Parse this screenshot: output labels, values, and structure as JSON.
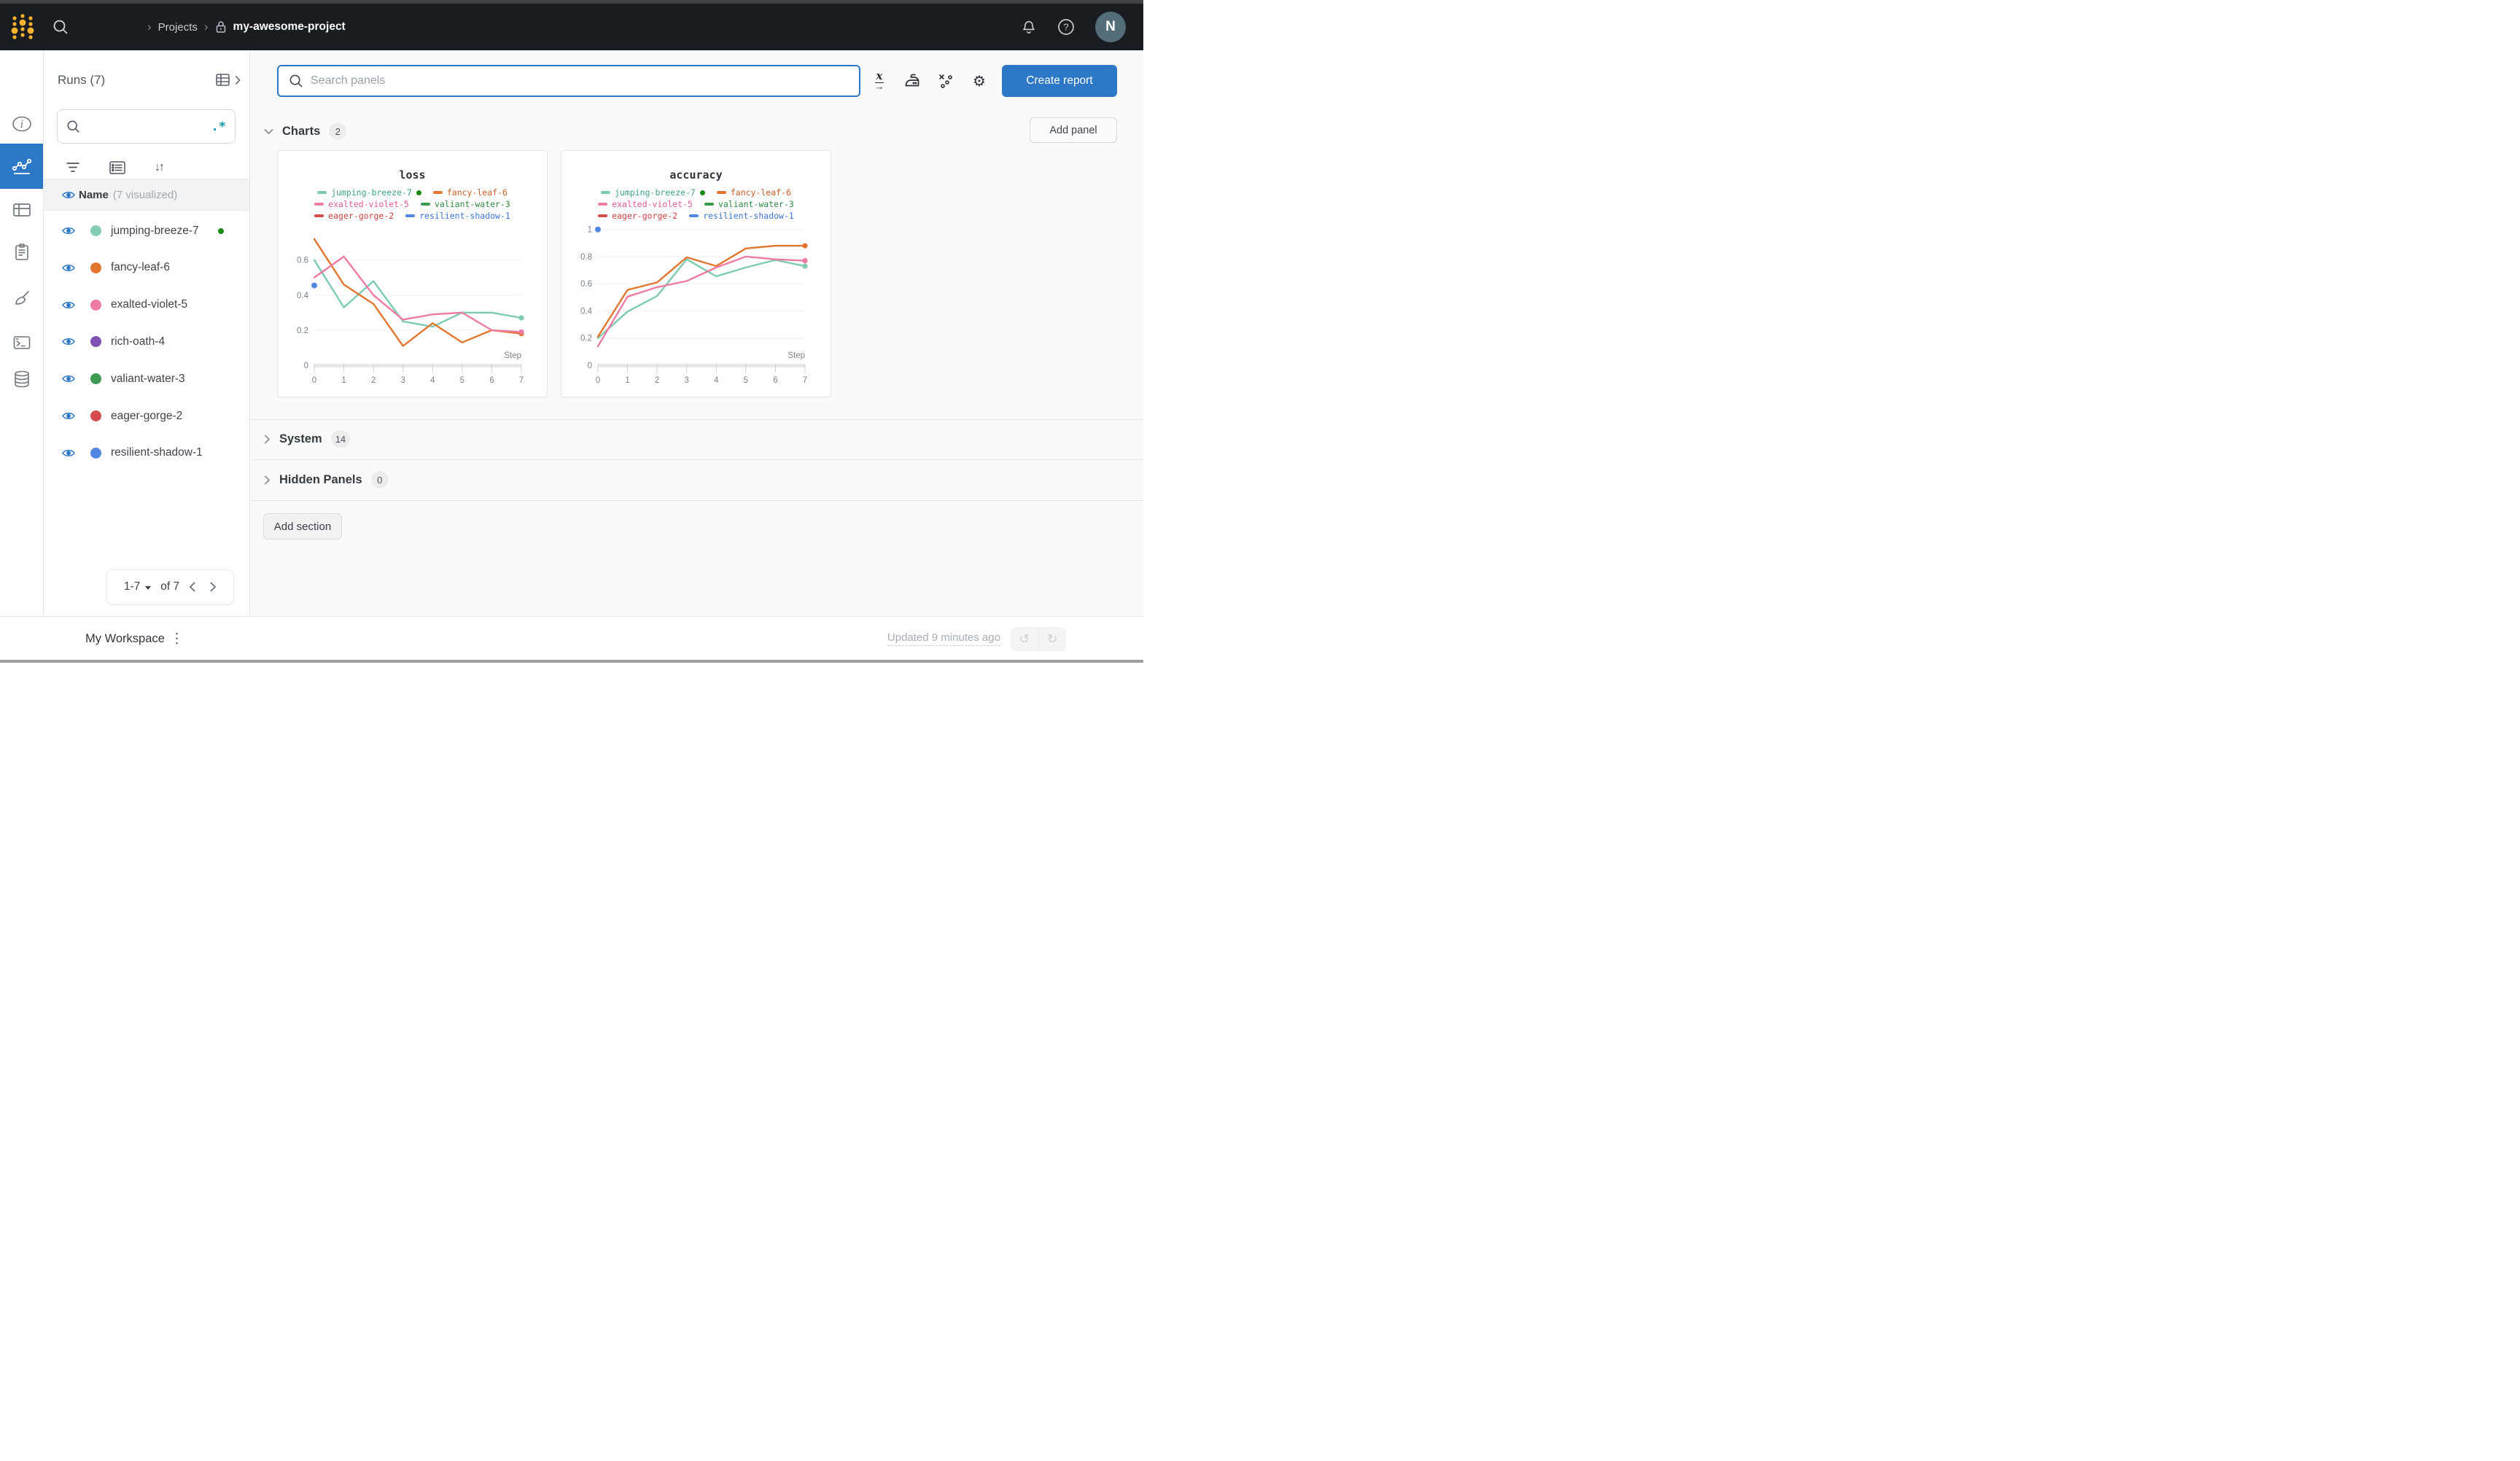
{
  "header": {
    "separator": "›",
    "breadcrumb_projects": "Projects",
    "breadcrumb_project": "my-awesome-project",
    "avatar_initial": "N"
  },
  "icons": {
    "sort": "↓↑",
    "gear": "⚙",
    "kebab": "⋮",
    "undo": "↺",
    "redo": "↻",
    "help": "?",
    "info": "i",
    "xaxis_letter": "x",
    "xaxis_arrow": "→",
    "regex": ".*"
  },
  "sidebar": {
    "title": "Runs (7)",
    "search_placeholder": "",
    "name_header": {
      "label": "Name",
      "suffix": "(7 visualized)"
    },
    "runs": [
      {
        "name": "jumping-breeze-7",
        "color": "#84ccb3",
        "running": true
      },
      {
        "name": "fancy-leaf-6",
        "color": "#e2762f",
        "running": false
      },
      {
        "name": "exalted-violet-5",
        "color": "#ef7ba5",
        "running": false
      },
      {
        "name": "rich-oath-4",
        "color": "#8050b4",
        "running": false
      },
      {
        "name": "valiant-water-3",
        "color": "#3e9c52",
        "running": false
      },
      {
        "name": "eager-gorge-2",
        "color": "#d54a4c",
        "running": false
      },
      {
        "name": "resilient-shadow-1",
        "color": "#5187e2",
        "running": false
      }
    ],
    "pagination": {
      "range": "1-7",
      "of": "of 7"
    }
  },
  "toolbar": {
    "search_placeholder": "Search panels",
    "create_report_label": "Create report",
    "add_panel_label": "Add panel"
  },
  "sections": {
    "charts": {
      "label": "Charts",
      "count": "2"
    },
    "system": {
      "label": "System",
      "count": "14"
    },
    "hidden": {
      "label": "Hidden Panels",
      "count": "0"
    },
    "add_section_label": "Add section"
  },
  "footer": {
    "workspace_label": "My Workspace",
    "updated_label": "Updated 9 minutes ago"
  },
  "colors": {
    "accent_blue": "#2d77c7",
    "running_green": "#1a8a16",
    "regex_teal": "#0b9aac",
    "header_bg": "#191c20",
    "main_bg": "#fafafa"
  },
  "chart_data": [
    {
      "type": "line",
      "title": "loss",
      "xlabel": "Step",
      "xlim": [
        0,
        7
      ],
      "ylim": [
        0,
        0.79
      ],
      "x_ticks": [
        0,
        1,
        2,
        3,
        4,
        5,
        6,
        7
      ],
      "y_ticks": [
        0,
        0.2,
        0.4,
        0.6
      ],
      "legend_position": "top",
      "grid": true,
      "series": [
        {
          "name": "jumping-breeze-7",
          "color": "#7ccbb2",
          "text_color": "#3fa38a",
          "running": true,
          "x": [
            0,
            1,
            2,
            3,
            4,
            5,
            6,
            7
          ],
          "values": [
            0.6,
            0.33,
            0.48,
            0.25,
            0.22,
            0.3,
            0.3,
            0.27
          ],
          "end_dot": true
        },
        {
          "name": "fancy-leaf-6",
          "color": "#e2762f",
          "text_color": "#cb5f26",
          "x": [
            0,
            1,
            2,
            3,
            4,
            5,
            6,
            7
          ],
          "values": [
            0.72,
            0.46,
            0.35,
            0.11,
            0.24,
            0.13,
            0.2,
            0.18
          ],
          "end_dot": true
        },
        {
          "name": "exalted-violet-5",
          "color": "#ef7ba5",
          "text_color": "#e85a92",
          "x": [
            0,
            1,
            2,
            3,
            4,
            5,
            6,
            7
          ],
          "values": [
            0.5,
            0.62,
            0.4,
            0.26,
            0.29,
            0.3,
            0.2,
            0.19
          ],
          "end_dot": true
        },
        {
          "name": "valiant-water-3",
          "color": "#3e9c52",
          "text_color": "#2e8a43",
          "x": [],
          "values": []
        },
        {
          "name": "eager-gorge-2",
          "color": "#d54a4c",
          "text_color": "#cf4143",
          "x": [],
          "values": []
        },
        {
          "name": "resilient-shadow-1",
          "color": "#5187e2",
          "text_color": "#3b74d9",
          "x": [],
          "values": [],
          "point": [
            0,
            0.455
          ]
        }
      ]
    },
    {
      "type": "line",
      "title": "accuracy",
      "xlabel": "Step",
      "xlim": [
        0,
        7
      ],
      "ylim": [
        0,
        1.02
      ],
      "x_ticks": [
        0,
        1,
        2,
        3,
        4,
        5,
        6,
        7
      ],
      "y_ticks": [
        0,
        0.2,
        0.4,
        0.6,
        0.8,
        1
      ],
      "legend_position": "top",
      "grid": true,
      "series": [
        {
          "name": "jumping-breeze-7",
          "color": "#7ccbb2",
          "text_color": "#3fa38a",
          "running": true,
          "x": [
            0,
            1,
            2,
            3,
            4,
            5,
            6,
            7
          ],
          "values": [
            0.2,
            0.395,
            0.51,
            0.78,
            0.655,
            0.72,
            0.775,
            0.73
          ],
          "end_dot": true
        },
        {
          "name": "fancy-leaf-6",
          "color": "#e2762f",
          "text_color": "#cb5f26",
          "x": [
            0,
            1,
            2,
            3,
            4,
            5,
            6,
            7
          ],
          "values": [
            0.21,
            0.555,
            0.61,
            0.795,
            0.73,
            0.86,
            0.88,
            0.88
          ],
          "end_dot": true
        },
        {
          "name": "exalted-violet-5",
          "color": "#ef7ba5",
          "text_color": "#e85a92",
          "x": [
            0,
            1,
            2,
            3,
            4,
            5,
            6,
            7
          ],
          "values": [
            0.14,
            0.505,
            0.575,
            0.62,
            0.72,
            0.8,
            0.78,
            0.77
          ],
          "end_dot": true
        },
        {
          "name": "valiant-water-3",
          "color": "#3e9c52",
          "text_color": "#2e8a43",
          "x": [],
          "values": []
        },
        {
          "name": "eager-gorge-2",
          "color": "#d54a4c",
          "text_color": "#cf4143",
          "x": [],
          "values": []
        },
        {
          "name": "resilient-shadow-1",
          "color": "#5187e2",
          "text_color": "#3b74d9",
          "x": [],
          "values": [],
          "point": [
            0,
            1.0
          ]
        }
      ]
    }
  ]
}
